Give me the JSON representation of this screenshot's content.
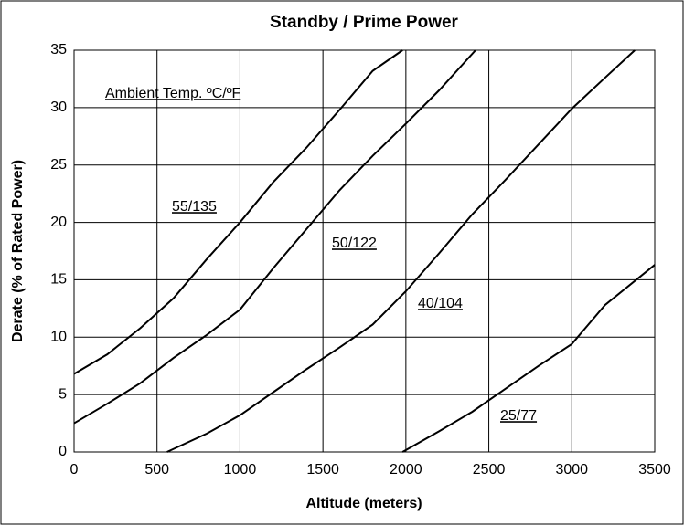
{
  "chart_data": {
    "type": "line",
    "title": "Standby / Prime Power",
    "x_label": "Altitude (meters)",
    "y_label": "Derate (% of Rated Power)",
    "annotation": "Ambient Temp. ºC/ºF",
    "xlim": [
      0,
      3500
    ],
    "xticks": [
      0,
      500,
      1000,
      1500,
      2000,
      2500,
      3000,
      3500
    ],
    "ylim": [
      0,
      35
    ],
    "yticks": [
      0,
      5,
      10,
      15,
      20,
      25,
      30,
      35
    ],
    "grid": true,
    "series": [
      {
        "name": "55/135",
        "color": "#000000",
        "x": [
          0,
          200,
          400,
          600,
          800,
          1000,
          1200,
          1400,
          1600,
          1800,
          1980
        ],
        "values": [
          6.8,
          8.5,
          10.8,
          13.4,
          16.8,
          20,
          23.5,
          26.5,
          29.8,
          33.2,
          35
        ]
      },
      {
        "name": "50/122",
        "color": "#000000",
        "x": [
          0,
          200,
          400,
          600,
          800,
          1000,
          1200,
          1400,
          1600,
          1800,
          2000,
          2200,
          2420
        ],
        "values": [
          2.5,
          4.2,
          6,
          8.2,
          10.2,
          12.4,
          16,
          19.4,
          22.8,
          25.8,
          28.6,
          31.5,
          35
        ]
      },
      {
        "name": "40/104",
        "color": "#000000",
        "x": [
          560,
          800,
          1000,
          1200,
          1400,
          1600,
          1800,
          2000,
          2200,
          2400,
          2600,
          2800,
          3000,
          3200,
          3380
        ],
        "values": [
          0,
          1.6,
          3.2,
          5.2,
          7.2,
          9.1,
          11.1,
          14,
          17.3,
          20.7,
          23.7,
          26.8,
          29.9,
          32.6,
          35
        ]
      },
      {
        "name": "25/77",
        "color": "#000000",
        "x": [
          1980,
          2200,
          2400,
          2600,
          2800,
          3000,
          3200,
          3500
        ],
        "values": [
          0,
          1.8,
          3.5,
          5.5,
          7.5,
          9.4,
          12.8,
          16.3
        ]
      }
    ]
  }
}
